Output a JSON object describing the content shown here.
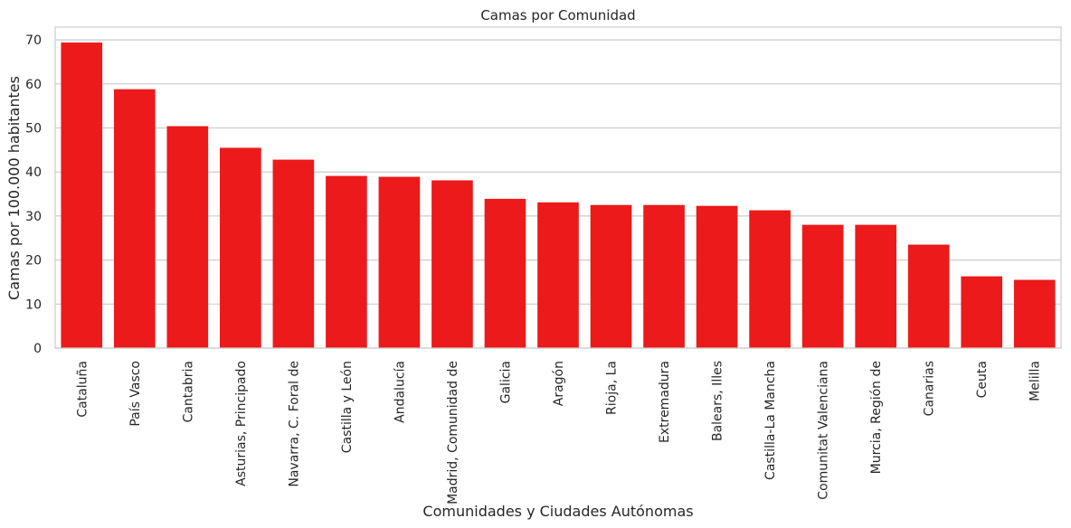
{
  "chart_data": {
    "type": "bar",
    "title": "Camas por Comunidad",
    "xlabel": "Comunidades y Ciudades Autónomas",
    "ylabel": "Camas por 100.000 habitantes",
    "categories": [
      "Cataluña",
      "País Vasco",
      "Cantabria",
      "Asturias, Principado",
      "Navarra, C. Foral de",
      "Castilla y León",
      "Andalucía",
      "Madrid, Comunidad de",
      "Galicia",
      "Aragón",
      "Rioja, La",
      "Extremadura",
      "Balears, Illes",
      "Castilla-La Mancha",
      "Comunitat Valenciana",
      "Murcia, Región de",
      "Canarias",
      "Ceuta",
      "Melilla"
    ],
    "values": [
      69.4,
      58.8,
      50.4,
      45.5,
      42.8,
      39.1,
      38.9,
      38.1,
      33.9,
      33.1,
      32.5,
      32.5,
      32.3,
      31.3,
      28.0,
      28.0,
      23.5,
      16.3,
      15.5
    ],
    "yticks": [
      0,
      10,
      20,
      30,
      40,
      50,
      60,
      70
    ],
    "ylim": [
      0,
      72.9
    ],
    "grid": true,
    "bar_color": "#ec1a1a"
  }
}
